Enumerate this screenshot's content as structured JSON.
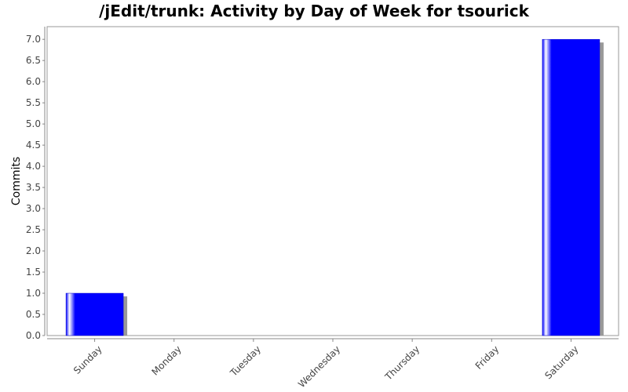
{
  "chart_data": {
    "type": "bar",
    "title": "/jEdit/trunk: Activity by Day of Week for tsourick",
    "xlabel": "",
    "ylabel": "Commits",
    "categories": [
      "Sunday",
      "Monday",
      "Tuesday",
      "Wednesday",
      "Thursday",
      "Friday",
      "Saturday"
    ],
    "values": [
      1,
      0,
      0,
      0,
      0,
      0,
      7
    ],
    "ylim": [
      0,
      7.3
    ],
    "yticks": [
      "0.0",
      "0.5",
      "1.0",
      "1.5",
      "2.0",
      "2.5",
      "3.0",
      "3.5",
      "4.0",
      "4.5",
      "5.0",
      "5.5",
      "6.0",
      "6.5",
      "7.0"
    ],
    "grid": false,
    "bar_color": "#0000ff"
  }
}
